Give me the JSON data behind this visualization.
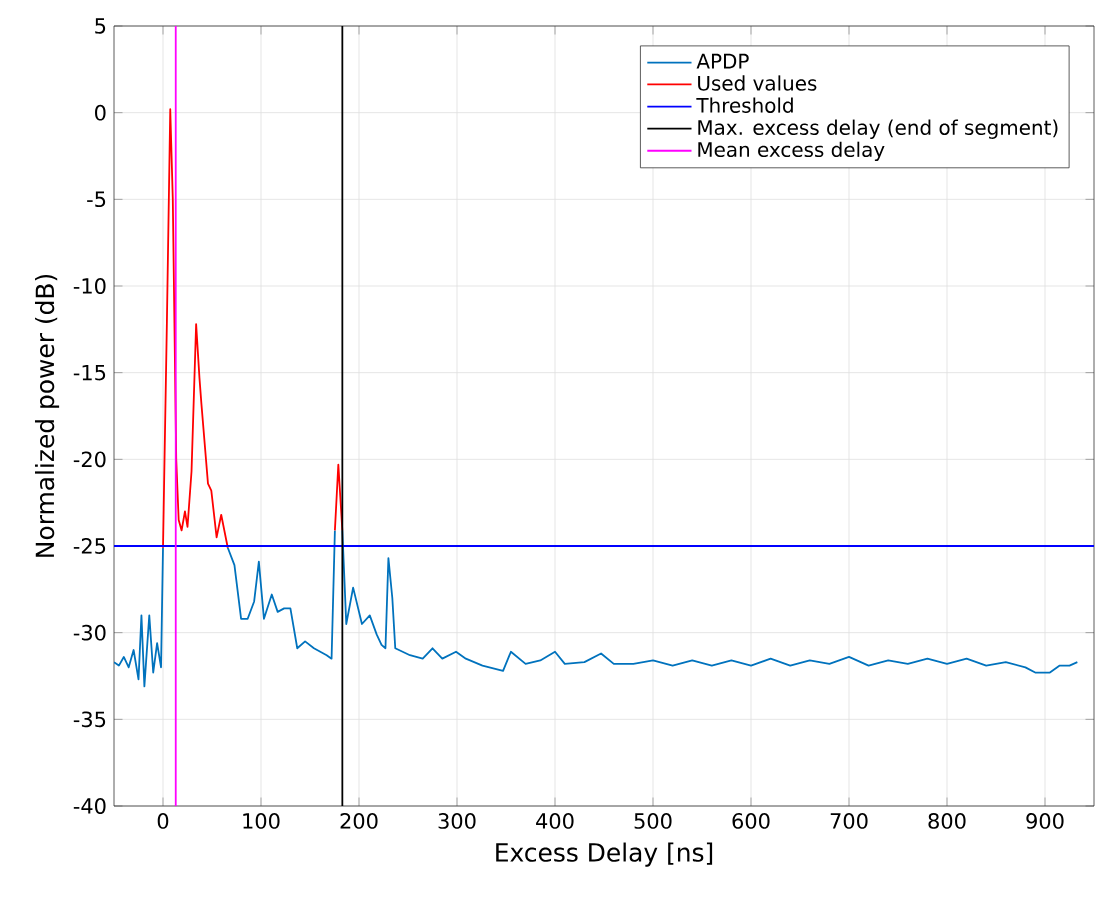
{
  "chart_data": {
    "type": "line",
    "xlabel": "Excess Delay [ns]",
    "ylabel": "Normalized power (dB)",
    "xlim": [
      -50,
      950
    ],
    "ylim": [
      -40,
      5
    ],
    "xticks": [
      0,
      100,
      200,
      300,
      400,
      500,
      600,
      700,
      800,
      900
    ],
    "yticks": [
      -40,
      -35,
      -30,
      -25,
      -20,
      -15,
      -10,
      -5,
      0,
      5
    ],
    "grid": true,
    "legend": "top right",
    "series": [
      {
        "name": "APDP",
        "color": "#0072bd",
        "x": [
          -50,
          -45,
          -40,
          -35,
          -30,
          -25,
          -22,
          -19,
          -14,
          -10,
          -6,
          -2,
          0,
          4,
          7.4,
          10,
          13.5,
          16,
          19,
          22.4,
          25,
          29.1,
          33.8,
          37.2,
          39.2,
          45.9,
          49.3,
          54.7,
          59.4,
          66.1,
          72.9,
          79.7,
          86.4,
          93,
          97.8,
          103,
          111,
          117,
          123.6,
          130,
          137,
          145,
          154,
          167,
          172,
          175.4,
          178.9,
          183,
          187,
          194,
          203,
          211,
          218,
          223,
          227,
          230,
          234,
          237,
          252,
          265,
          275,
          285,
          299,
          309,
          326,
          347,
          355,
          370,
          385,
          400,
          410,
          430,
          447,
          460,
          480,
          500,
          520,
          540,
          560,
          580,
          600,
          620,
          640,
          660,
          680,
          700,
          720,
          740,
          760,
          780,
          800,
          820,
          840,
          860,
          880,
          890,
          905,
          915,
          925,
          933
        ],
        "values": [
          -31.7,
          -31.9,
          -31.4,
          -32.0,
          -31.0,
          -32.7,
          -29.0,
          -33.1,
          -29.0,
          -32.3,
          -30.6,
          -32.0,
          -25.1,
          null,
          null,
          null,
          null,
          null,
          null,
          null,
          null,
          null,
          null,
          null,
          null,
          null,
          null,
          null,
          null,
          -25.1,
          -26.1,
          -29.2,
          -29.2,
          -28.2,
          -25.9,
          -29.2,
          -27.8,
          -28.8,
          -28.6,
          -28.6,
          -30.9,
          -30.5,
          -30.9,
          -31.3,
          -31.5,
          -24.1,
          null,
          -24.1,
          -29.5,
          -27.4,
          -29.5,
          -29.0,
          -30.1,
          -30.7,
          -30.9,
          -25.7,
          -28,
          -30.9,
          -31.3,
          -31.5,
          -30.9,
          -31.5,
          -31.1,
          -31.5,
          -31.9,
          -32.2,
          -31.1,
          -31.8,
          -31.6,
          -31.1,
          -31.8,
          -31.7,
          -31.2,
          -31.8,
          -31.8,
          -31.6,
          -31.9,
          -31.6,
          -31.9,
          -31.6,
          -31.9,
          -31.5,
          -31.9,
          -31.6,
          -31.8,
          -31.4,
          -31.9,
          -31.6,
          -31.8,
          -31.5,
          -31.8,
          -31.5,
          -31.9,
          -31.7,
          -32.0,
          -32.3,
          -32.3,
          -31.9,
          -31.9,
          -31.7
        ]
      },
      {
        "name": "Used values",
        "color": "#ff0000",
        "x": [
          0,
          4,
          7.4,
          10,
          13.5,
          16,
          19,
          22.4,
          25,
          29.1,
          33.8,
          37.2,
          39.2,
          45.9,
          49.3,
          54.7,
          59.4,
          66.1,
          120,
          175.4,
          178.9,
          183
        ],
        "values": [
          -25.1,
          -12,
          0.2,
          -5,
          -20,
          -23.5,
          -24.1,
          -23.0,
          -23.9,
          -20.7,
          -12.2,
          -15.3,
          -16.8,
          -21.4,
          -21.8,
          -24.5,
          -23.2,
          -25.1,
          null,
          -24.1,
          -20.3,
          -24.1
        ]
      },
      {
        "name": "Threshold",
        "color": "#0000ff",
        "x": [
          -50,
          950
        ],
        "values": [
          -25,
          -25
        ]
      },
      {
        "name": "Max. excess delay (end of segment)",
        "color": "#000000",
        "x": [
          183,
          183
        ],
        "values": [
          -40,
          5
        ]
      },
      {
        "name": "Mean excess delay",
        "color": "#ff00ff",
        "x": [
          13,
          13
        ],
        "values": [
          -40,
          5
        ]
      }
    ]
  }
}
